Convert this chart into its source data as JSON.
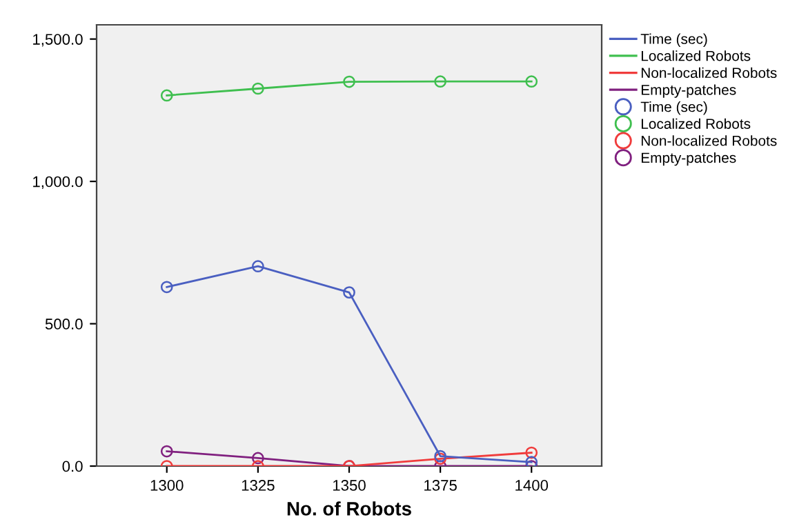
{
  "chart_data": {
    "type": "line",
    "xlabel": "No. of Robots",
    "categories": [
      "1300",
      "1325",
      "1350",
      "1375",
      "1400"
    ],
    "series": [
      {
        "name": "Time (sec)",
        "color": "#4a5fc1",
        "values": [
          629,
          702,
          610,
          35,
          14
        ]
      },
      {
        "name": "Localized Robots",
        "color": "#3fbf4f",
        "values": [
          1302,
          1326,
          1350,
          1351,
          1351
        ]
      },
      {
        "name": "Non-localized Robots",
        "color": "#f03c3c",
        "values": [
          0,
          0,
          0,
          26,
          47
        ]
      },
      {
        "name": "Empty-patches",
        "color": "#80207f",
        "values": [
          52,
          28,
          0,
          0,
          0
        ]
      }
    ],
    "ylim": [
      0,
      1550
    ],
    "yticks": [
      {
        "value": 0,
        "label": "0.0"
      },
      {
        "value": 500,
        "label": "500.0"
      },
      {
        "value": 1000,
        "label": "1,000.0"
      },
      {
        "value": 1500,
        "label": "1,500.0"
      }
    ],
    "grid": false,
    "legend": "top right",
    "marker": "circle",
    "line_style": "solid"
  }
}
